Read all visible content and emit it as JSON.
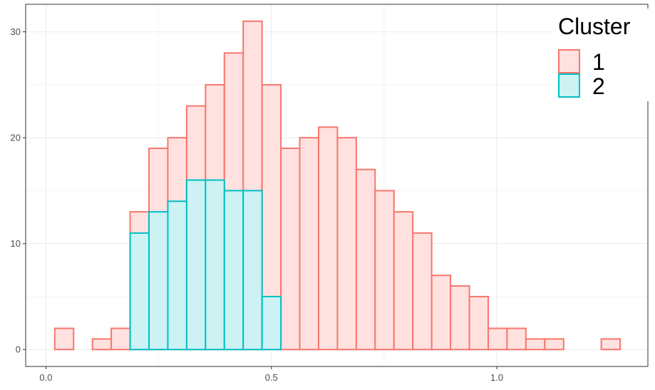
{
  "chart_data": {
    "type": "bar",
    "subtype": "overlaid-histogram",
    "title": "",
    "xlabel": "",
    "ylabel": "",
    "xlim": [
      -0.045,
      1.335
    ],
    "ylim": [
      -1.6,
      32.6
    ],
    "grid": true,
    "legend": {
      "title": "Cluster",
      "placement": "top-right"
    },
    "x_ticks": [
      {
        "value": 0.0,
        "label": "0.0"
      },
      {
        "value": 0.5,
        "label": "0.5"
      },
      {
        "value": 1.0,
        "label": "1.0"
      }
    ],
    "y_ticks": [
      {
        "value": 0,
        "label": "0"
      },
      {
        "value": 10,
        "label": "10"
      },
      {
        "value": 20,
        "label": "20"
      },
      {
        "value": 30,
        "label": "30"
      }
    ],
    "bin_width": 0.0418,
    "bin_starts": [
      0.0195,
      0.0613,
      0.1031,
      0.1449,
      0.1867,
      0.2285,
      0.2703,
      0.3121,
      0.3539,
      0.3957,
      0.4375,
      0.4793,
      0.5211,
      0.5629,
      0.6047,
      0.6465,
      0.6883,
      0.7301,
      0.7719,
      0.8137,
      0.8555,
      0.8973,
      0.9391,
      0.9809,
      1.0227,
      1.0645,
      1.1063,
      1.1481,
      1.1899,
      1.2317
    ],
    "series": [
      {
        "name": "1",
        "fill": "#ffe1e0",
        "stroke": "#f8766d",
        "values": [
          2,
          0,
          1,
          2,
          13,
          19,
          20,
          23,
          25,
          28,
          31,
          25,
          19,
          20,
          21,
          20,
          17,
          15,
          13,
          11,
          7,
          6,
          5,
          2,
          2,
          1,
          1,
          0,
          0,
          1
        ]
      },
      {
        "name": "2",
        "fill": "#ccf2f3",
        "stroke": "#00bfc4",
        "values": [
          0,
          0,
          0,
          0,
          11,
          13,
          14,
          16,
          16,
          15,
          15,
          5,
          0,
          0,
          0,
          0,
          0,
          0,
          0,
          0,
          0,
          0,
          0,
          0,
          0,
          0,
          0,
          0,
          0,
          0
        ]
      }
    ]
  }
}
